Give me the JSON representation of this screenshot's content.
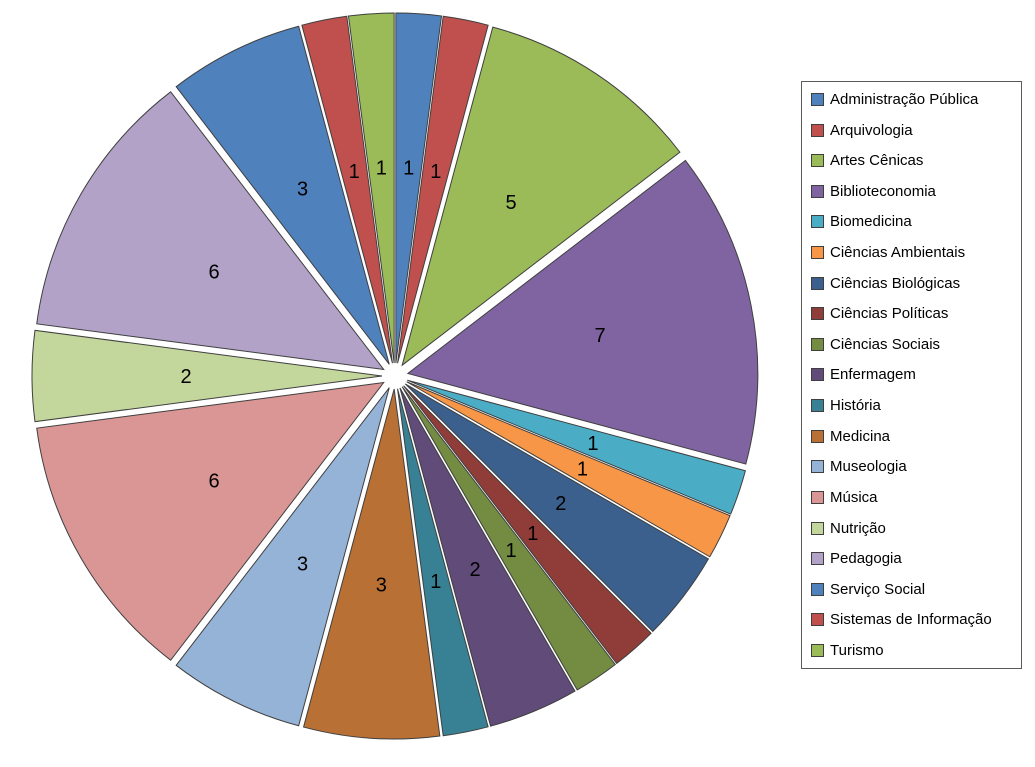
{
  "chart_data": {
    "type": "pie",
    "title": "",
    "categories": [
      "Administração Pública",
      "Arquivologia",
      "Artes Cênicas",
      "Biblioteconomia",
      "Biomedicina",
      "Ciências Ambientais",
      "Ciências Biológicas",
      "Ciências Políticas",
      "Ciências Sociais",
      "Enfermagem",
      "História",
      "Medicina",
      "Museologia",
      "Música",
      "Nutrição",
      "Pedagogia",
      "Serviço Social",
      "Sistemas de Informação",
      "Turismo"
    ],
    "values": [
      1,
      1,
      5,
      7,
      1,
      1,
      2,
      1,
      1,
      2,
      1,
      3,
      3,
      6,
      2,
      6,
      3,
      1,
      1
    ],
    "colors": [
      "#4F81BD",
      "#C0504D",
      "#9BBB59",
      "#8064A2",
      "#4BACC6",
      "#F79646",
      "#3B608D",
      "#903C39",
      "#748C42",
      "#604B79",
      "#388194",
      "#B97034",
      "#95B3D7",
      "#D99694",
      "#C3D69B",
      "#B2A2C7",
      "#4F81BD",
      "#C0504D",
      "#9BBB59"
    ],
    "total": 48,
    "data_labels": "value",
    "label_color": "#000000",
    "slice_border_color": "#3f3f3f",
    "start_angle": "top",
    "direction": "clockwise",
    "exploded": true,
    "legend_position": "right"
  }
}
